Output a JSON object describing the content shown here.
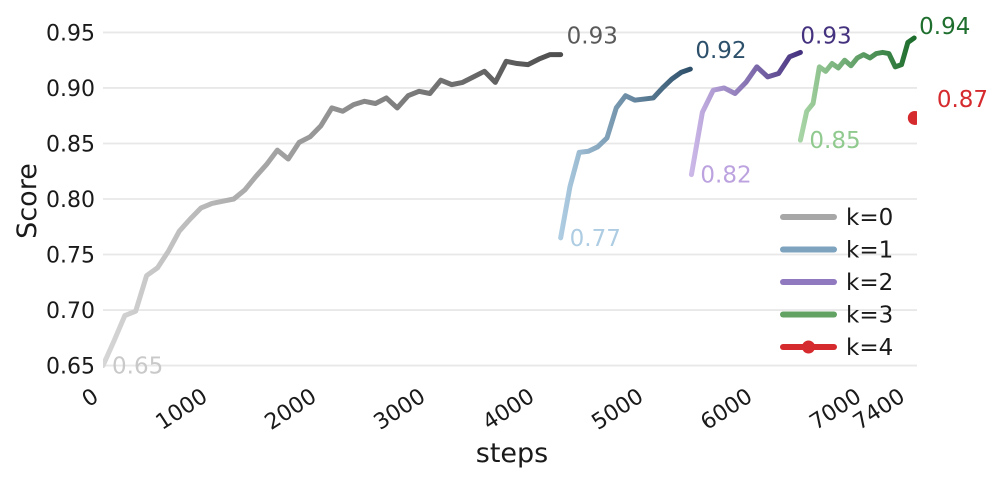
{
  "chart_data": {
    "type": "line",
    "title": "",
    "xlabel": "steps",
    "ylabel": "Score",
    "xlim": [
      0,
      7470
    ],
    "ylim": [
      0.637,
      0.963
    ],
    "x_tick_values": [
      0,
      1000,
      2000,
      3000,
      4000,
      5000,
      6000,
      7000,
      7400
    ],
    "x_tick_labels": [
      "0",
      "1000",
      "2000",
      "3000",
      "4000",
      "5000",
      "6000",
      "7000",
      "7400"
    ],
    "y_tick_values": [
      0.65,
      0.7,
      0.75,
      0.8,
      0.85,
      0.9,
      0.95
    ],
    "y_tick_labels": [
      "0.65",
      "0.70",
      "0.75",
      "0.80",
      "0.85",
      "0.90",
      "0.95"
    ],
    "grid": "horizontal-only",
    "background_color": "#ffffff",
    "gridline_color": "#e8e8e8",
    "tick_text_color": "#1a1a1a",
    "legend": {
      "position": "lower-right",
      "entries": [
        {
          "label": "k=0",
          "color": "#a7a7a7",
          "marker": false
        },
        {
          "label": "k=1",
          "color": "#7da3be",
          "marker": false
        },
        {
          "label": "k=2",
          "color": "#9179bf",
          "marker": false
        },
        {
          "label": "k=3",
          "color": "#62a263",
          "marker": false
        },
        {
          "label": "k=4",
          "color": "#d62b2e",
          "marker": true
        }
      ]
    },
    "series": [
      {
        "name": "k=0",
        "type": "line",
        "gradient": [
          "#d6d6d6",
          "#4e4e4e"
        ],
        "legend_color": "#a7a7a7",
        "start_annotation": {
          "text": "0.65",
          "color": "#c9c9c9"
        },
        "end_annotation": {
          "text": "0.93",
          "color": "#5a5a5a",
          "dx": 6,
          "dy": -11
        },
        "points": [
          [
            0,
            0.65
          ],
          [
            100,
            0.672
          ],
          [
            200,
            0.695
          ],
          [
            300,
            0.699
          ],
          [
            400,
            0.731
          ],
          [
            500,
            0.738
          ],
          [
            600,
            0.753
          ],
          [
            700,
            0.771
          ],
          [
            800,
            0.782
          ],
          [
            900,
            0.792
          ],
          [
            1000,
            0.796
          ],
          [
            1100,
            0.798
          ],
          [
            1200,
            0.8
          ],
          [
            1300,
            0.808
          ],
          [
            1400,
            0.82
          ],
          [
            1500,
            0.831
          ],
          [
            1600,
            0.844
          ],
          [
            1700,
            0.836
          ],
          [
            1800,
            0.851
          ],
          [
            1900,
            0.856
          ],
          [
            2000,
            0.866
          ],
          [
            2100,
            0.882
          ],
          [
            2200,
            0.879
          ],
          [
            2300,
            0.885
          ],
          [
            2400,
            0.888
          ],
          [
            2500,
            0.886
          ],
          [
            2600,
            0.891
          ],
          [
            2700,
            0.882
          ],
          [
            2800,
            0.893
          ],
          [
            2900,
            0.897
          ],
          [
            3000,
            0.895
          ],
          [
            3100,
            0.907
          ],
          [
            3200,
            0.903
          ],
          [
            3300,
            0.905
          ],
          [
            3400,
            0.91
          ],
          [
            3500,
            0.915
          ],
          [
            3600,
            0.905
          ],
          [
            3700,
            0.924
          ],
          [
            3800,
            0.922
          ],
          [
            3900,
            0.921
          ],
          [
            4000,
            0.926
          ],
          [
            4100,
            0.93
          ],
          [
            4200,
            0.93
          ]
        ]
      },
      {
        "name": "k=1",
        "type": "line",
        "gradient": [
          "#aecde3",
          "#2e506a"
        ],
        "legend_color": "#7da3be",
        "start_annotation": {
          "text": "0.77",
          "color": "#aecde3"
        },
        "end_annotation": {
          "text": "0.92",
          "color": "#2d506b",
          "dx": 5,
          "dy": -11
        },
        "points": [
          [
            4200,
            0.765
          ],
          [
            4285,
            0.811
          ],
          [
            4370,
            0.842
          ],
          [
            4455,
            0.843
          ],
          [
            4540,
            0.847
          ],
          [
            4625,
            0.855
          ],
          [
            4710,
            0.882
          ],
          [
            4795,
            0.893
          ],
          [
            4880,
            0.889
          ],
          [
            4965,
            0.89
          ],
          [
            5050,
            0.891
          ],
          [
            5135,
            0.9
          ],
          [
            5220,
            0.908
          ],
          [
            5305,
            0.914
          ],
          [
            5390,
            0.917
          ]
        ]
      },
      {
        "name": "k=2",
        "type": "line",
        "gradient": [
          "#ccb8e8",
          "#45327f"
        ],
        "legend_color": "#9179bf",
        "start_annotation": {
          "text": "0.82",
          "color": "#bca3df"
        },
        "end_annotation": {
          "text": "0.93",
          "color": "#45327f",
          "dx": 0,
          "dy": -9
        },
        "points": [
          [
            5400,
            0.822
          ],
          [
            5500,
            0.878
          ],
          [
            5600,
            0.898
          ],
          [
            5700,
            0.9
          ],
          [
            5800,
            0.895
          ],
          [
            5900,
            0.905
          ],
          [
            6000,
            0.919
          ],
          [
            6100,
            0.91
          ],
          [
            6200,
            0.913
          ],
          [
            6300,
            0.928
          ],
          [
            6400,
            0.932
          ]
        ]
      },
      {
        "name": "k=3",
        "type": "line",
        "gradient": [
          "#a8d5a5",
          "#1c6c2c"
        ],
        "legend_color": "#62a263",
        "start_annotation": {
          "text": "0.85",
          "color": "#90ca8f"
        },
        "end_annotation": {
          "text": "0.94",
          "color": "#1e6e2e",
          "dx": 5,
          "dy": -4
        },
        "points": [
          [
            6400,
            0.853
          ],
          [
            6458,
            0.879
          ],
          [
            6516,
            0.886
          ],
          [
            6574,
            0.919
          ],
          [
            6632,
            0.915
          ],
          [
            6690,
            0.922
          ],
          [
            6748,
            0.918
          ],
          [
            6806,
            0.925
          ],
          [
            6864,
            0.92
          ],
          [
            6922,
            0.927
          ],
          [
            6980,
            0.93
          ],
          [
            7038,
            0.927
          ],
          [
            7096,
            0.931
          ],
          [
            7154,
            0.932
          ],
          [
            7212,
            0.931
          ],
          [
            7270,
            0.919
          ],
          [
            7328,
            0.921
          ],
          [
            7386,
            0.941
          ],
          [
            7444,
            0.945
          ]
        ]
      },
      {
        "name": "k=4",
        "type": "point",
        "color": "#d62b2e",
        "legend_color": "#d62b2e",
        "marker_radius": 7,
        "end_annotation": {
          "text": "0.87",
          "color": "#d62b2e",
          "dx": 22,
          "dy": -11
        },
        "points": [
          [
            7450,
            0.873
          ]
        ]
      }
    ]
  }
}
